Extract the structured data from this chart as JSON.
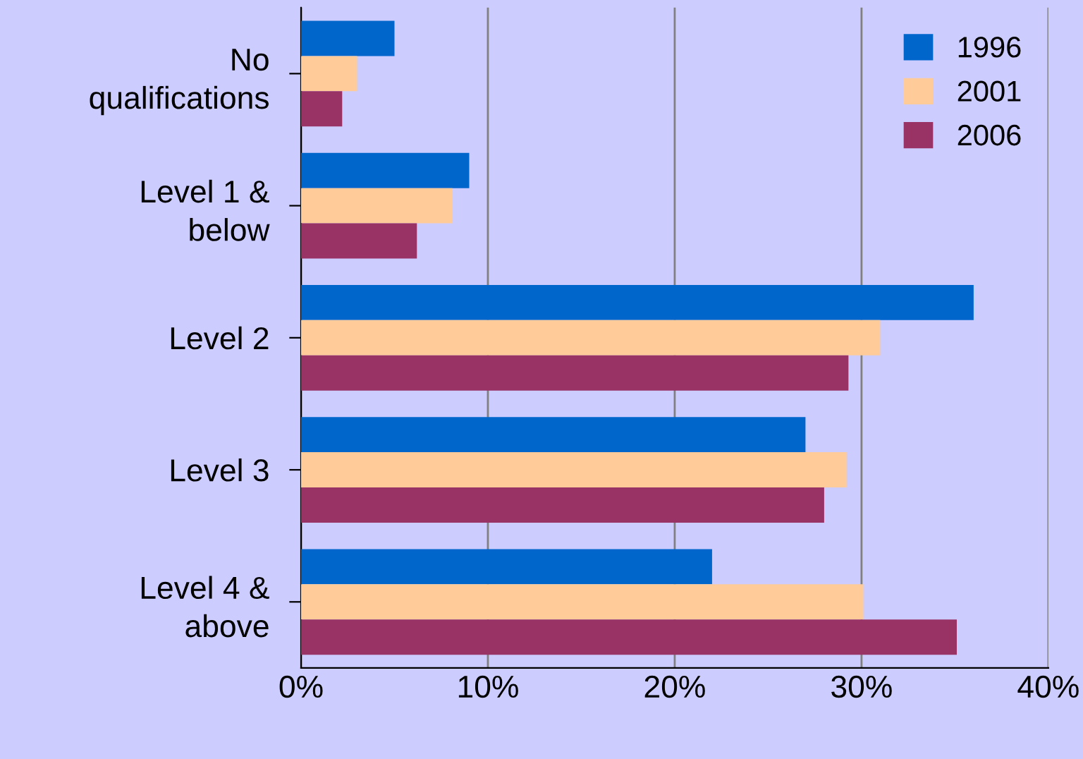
{
  "chart_data": {
    "type": "bar",
    "orientation": "horizontal",
    "categories": [
      "No\nqualifications",
      "Level 1 &\nbelow",
      "Level 2",
      "Level 3",
      "Level 4 &\nabove"
    ],
    "series": [
      {
        "name": "1996",
        "color": "#0066cc",
        "values": [
          5,
          9,
          36,
          27,
          22
        ]
      },
      {
        "name": "2001",
        "color": "#ffcc99",
        "values": [
          3,
          8.1,
          31,
          29.2,
          30.1
        ]
      },
      {
        "name": "2006",
        "color": "#993366",
        "values": [
          2.2,
          6.2,
          29.3,
          28,
          35.1
        ]
      }
    ],
    "xlim": [
      0,
      40
    ],
    "xticks": [
      {
        "value": 0,
        "label": "0%"
      },
      {
        "value": 10,
        "label": "10%"
      },
      {
        "value": 20,
        "label": "20%"
      },
      {
        "value": 30,
        "label": "30%"
      },
      {
        "value": 40,
        "label": "40%"
      }
    ],
    "grid": "x",
    "legend": "top right"
  }
}
